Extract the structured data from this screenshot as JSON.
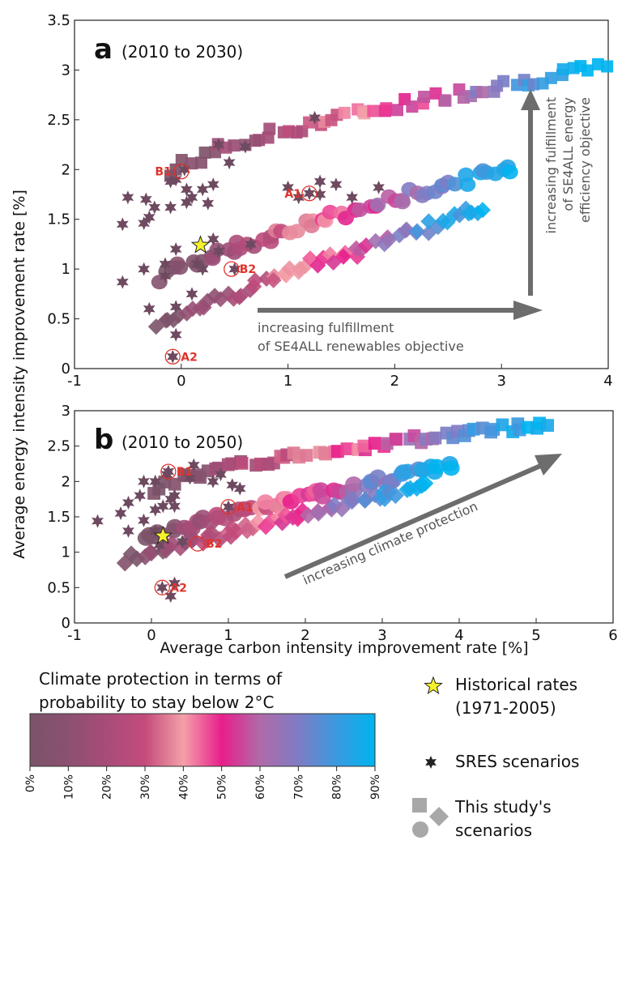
{
  "ylabel": "Average energy intensity improvement rate [%]",
  "xlabel": "Average carbon intensity improvement rate [%]",
  "chart_data": [
    {
      "type": "scatter",
      "panel": "a",
      "title": "(2010 to 2030)",
      "xlim": [
        -1,
        4
      ],
      "ylim": [
        0,
        3.5
      ],
      "xticks": [
        "-1",
        "0",
        "1",
        "2",
        "3",
        "4"
      ],
      "yticks": [
        "0",
        "0.5",
        "1",
        "1.5",
        "2",
        "2.5",
        "3",
        "3.5"
      ],
      "annotations": {
        "horizontal_arrow": [
          "increasing fulfillment",
          "of  SE4ALL renewables objective"
        ],
        "vertical_arrow": [
          "increasing fulfillment",
          "of SE4ALL energy",
          "efficiency objective"
        ]
      },
      "historical": {
        "name": "Historical rates",
        "x": 0.18,
        "y": 1.24
      },
      "sres": [
        [
          -0.5,
          1.72
        ],
        [
          -0.33,
          1.7
        ],
        [
          -0.3,
          1.52
        ],
        [
          -0.25,
          1.62
        ],
        [
          -0.35,
          1.46
        ],
        [
          -0.55,
          1.45
        ],
        [
          -0.1,
          1.62
        ],
        [
          0.05,
          1.8
        ],
        [
          -0.05,
          1.9
        ],
        [
          -0.1,
          1.88
        ],
        [
          0.1,
          1.72
        ],
        [
          0.2,
          1.8
        ],
        [
          0.3,
          1.85
        ],
        [
          0.45,
          2.07
        ],
        [
          0.35,
          2.25
        ],
        [
          0.6,
          2.23
        ],
        [
          1.25,
          2.52
        ],
        [
          1.0,
          1.82
        ],
        [
          1.1,
          1.72
        ],
        [
          1.3,
          1.75
        ],
        [
          1.3,
          1.88
        ],
        [
          1.45,
          1.85
        ],
        [
          1.6,
          1.72
        ],
        [
          1.85,
          1.82
        ],
        [
          0.05,
          1.67
        ],
        [
          0.25,
          1.66
        ],
        [
          0.3,
          1.3
        ],
        [
          0.15,
          1.05
        ],
        [
          -0.15,
          1.05
        ],
        [
          -0.05,
          1.2
        ],
        [
          -0.35,
          1.0
        ],
        [
          -0.15,
          0.93
        ],
        [
          0.35,
          1.18
        ],
        [
          0.2,
          1.0
        ],
        [
          -0.55,
          0.87
        ],
        [
          -0.3,
          0.6
        ],
        [
          0.1,
          0.75
        ],
        [
          -0.05,
          0.34
        ],
        [
          -0.05,
          0.62
        ],
        [
          0.65,
          1.25
        ],
        [
          0.5,
          1.0
        ],
        [
          0.03,
          2.0
        ],
        [
          1.2,
          1.76
        ],
        [
          -0.08,
          0.12
        ]
      ],
      "sres_labels": [
        {
          "label": "B1",
          "x": 0.0,
          "y": 1.98
        },
        {
          "label": "A1",
          "x": 1.2,
          "y": 1.76
        },
        {
          "label": "B2",
          "x": 0.47,
          "y": 1.0
        },
        {
          "label": "A2",
          "x": -0.08,
          "y": 0.12
        }
      ],
      "study_series": [
        {
          "shape": "square",
          "x_start": -0.1,
          "x_end": 3.95,
          "y_start": 1.93,
          "y_end": 3.02,
          "curvature": 0.35,
          "count": 60
        },
        {
          "shape": "circle",
          "x_start": -0.2,
          "x_end": 3.1,
          "y_start": 0.92,
          "y_end": 2.02,
          "curvature": 0.15,
          "count": 60
        },
        {
          "shape": "diamond",
          "x_start": -0.2,
          "x_end": 2.85,
          "y_start": 0.45,
          "y_end": 1.62,
          "curvature": 0.1,
          "count": 60
        }
      ]
    },
    {
      "type": "scatter",
      "panel": "b",
      "title": "(2010 to 2050)",
      "xlim": [
        -1,
        6
      ],
      "ylim": [
        0,
        3
      ],
      "xticks": [
        "-1",
        "0",
        "1",
        "2",
        "3",
        "4",
        "5",
        "6"
      ],
      "yticks": [
        "0",
        "0.5",
        "1",
        "1.5",
        "2",
        "2.5",
        "3"
      ],
      "annotations": {
        "diagonal_arrow": "increasing climate protection"
      },
      "historical": {
        "name": "Historical rates",
        "x": 0.15,
        "y": 1.23
      },
      "sres": [
        [
          -0.1,
          2.0
        ],
        [
          0.05,
          2.0
        ],
        [
          0.2,
          2.1
        ],
        [
          0.5,
          2.05
        ],
        [
          0.55,
          2.23
        ],
        [
          0.8,
          2.0
        ],
        [
          0.9,
          2.1
        ],
        [
          1.05,
          1.95
        ],
        [
          1.15,
          1.9
        ],
        [
          0.3,
          1.8
        ],
        [
          0.25,
          1.75
        ],
        [
          0.15,
          1.65
        ],
        [
          0.05,
          1.6
        ],
        [
          -0.15,
          1.8
        ],
        [
          -0.3,
          1.7
        ],
        [
          -0.4,
          1.55
        ],
        [
          -0.1,
          1.45
        ],
        [
          0.3,
          1.65
        ],
        [
          0.05,
          1.3
        ],
        [
          -0.3,
          1.3
        ],
        [
          -0.7,
          1.44
        ],
        [
          0.1,
          1.1
        ],
        [
          0.15,
          1.2
        ],
        [
          0.4,
          1.15
        ],
        [
          0.3,
          0.56
        ],
        [
          0.25,
          0.38
        ],
        [
          0.22,
          2.14
        ],
        [
          1.0,
          1.64
        ],
        [
          0.14,
          0.5
        ]
      ],
      "sres_labels": [
        {
          "label": "B1",
          "x": 0.22,
          "y": 2.14
        },
        {
          "label": "A1",
          "x": 1.0,
          "y": 1.64
        },
        {
          "label": "B2",
          "x": 0.6,
          "y": 1.12
        },
        {
          "label": "A2",
          "x": 0.14,
          "y": 0.5
        }
      ],
      "study_series": [
        {
          "shape": "square",
          "x_start": 0.05,
          "x_end": 5.15,
          "y_start": 1.88,
          "y_end": 2.82,
          "curvature": 0.35,
          "count": 62
        },
        {
          "shape": "circle",
          "x_start": -0.1,
          "x_end": 3.9,
          "y_start": 1.2,
          "y_end": 2.23,
          "curvature": 0.1,
          "count": 60
        },
        {
          "shape": "diamond",
          "x_start": -0.3,
          "x_end": 3.6,
          "y_start": 0.9,
          "y_end": 1.95,
          "curvature": 0.05,
          "count": 60
        }
      ]
    }
  ],
  "legend": {
    "colorbar_title": [
      "Climate protection in terms of",
      "probability to stay below 2°C"
    ],
    "colorbar_ticks": [
      "0%",
      "10%",
      "20%",
      "30%",
      "40%",
      "50%",
      "60%",
      "70%",
      "80%",
      "90%"
    ],
    "colorbar_colors": [
      "#7a5368",
      "#8c5070",
      "#a84c78",
      "#c44b7c",
      "#f4a0a8",
      "#e81e8c",
      "#b06aa8",
      "#7f7cc4",
      "#3a9ae0",
      "#00b4f0"
    ],
    "historical_label": [
      "Historical rates",
      "(1971-2005)"
    ],
    "sres_label": "SRES scenarios",
    "study_label": [
      "This study's",
      "scenarios"
    ]
  },
  "colors": {
    "star_marker": "#6e4a60",
    "historical_star": "#f5f22a",
    "label_red": "#e0332b",
    "arrow_gray": "#6d6d6d",
    "square_icon": "#a8a8a8"
  }
}
